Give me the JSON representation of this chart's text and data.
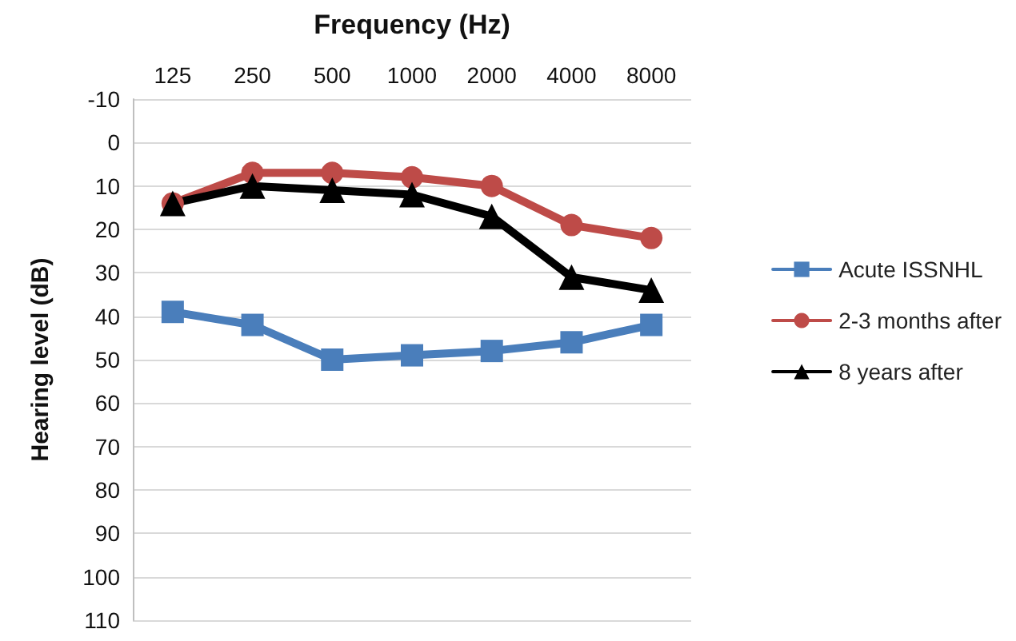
{
  "chart_data": {
    "type": "line",
    "xlabel": "Frequency (Hz)",
    "ylabel": "Hearing level (dB)",
    "categories": [
      "125",
      "250",
      "500",
      "1000",
      "2000",
      "4000",
      "8000"
    ],
    "series": [
      {
        "name": "Acute ISSNHL",
        "color": "#4a7ebb",
        "marker": "square",
        "values": [
          39,
          42,
          50,
          49,
          48,
          46,
          42
        ]
      },
      {
        "name": "2-3 months after",
        "color": "#be4b48",
        "marker": "circle",
        "values": [
          14,
          7,
          7,
          8,
          10,
          19,
          22
        ]
      },
      {
        "name": "8 years after",
        "color": "#000000",
        "marker": "triangle",
        "values": [
          14,
          10,
          11,
          12,
          17,
          31,
          34
        ]
      }
    ],
    "ylim": [
      110,
      -10
    ],
    "yticks": [
      -10,
      0,
      10,
      20,
      30,
      40,
      50,
      60,
      70,
      80,
      90,
      100,
      110
    ],
    "grid": "y",
    "legend": "right",
    "line_style": "solid"
  }
}
